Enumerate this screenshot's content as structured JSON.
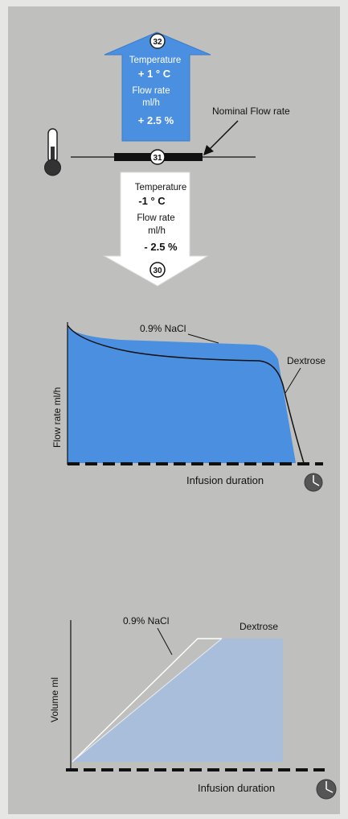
{
  "temperature_diagram": {
    "up": {
      "badge": "32",
      "temperature_label": "Temperature",
      "temperature_value": "+ 1 ° C",
      "flow_label_1": "Flow rate",
      "flow_label_2": "ml/h",
      "flow_value": "+ 2.5 %",
      "color": "#4a8fe0"
    },
    "nominal": {
      "badge": "31",
      "label": "Nominal Flow rate"
    },
    "down": {
      "badge": "30",
      "temperature_label": "Temperature",
      "temperature_value": "-1 ° C",
      "flow_label_1": "Flow rate",
      "flow_label_2": "ml/h",
      "flow_value": "- 2.5 %",
      "color": "#ffffff"
    },
    "thermometer_icon": "thermometer-icon"
  },
  "flow_chart": {
    "ylabel": "Flow rate  ml/h",
    "xlabel": "Infusion duration",
    "series_a": "0.9% NaCl",
    "series_b": "Dextrose",
    "fill_color": "#4a8fe0",
    "clock_icon": "clock-icon"
  },
  "volume_chart": {
    "ylabel": "Volume  ml",
    "xlabel": "Infusion duration",
    "series_a": "0.9% NaCl",
    "series_b": "Dextrose",
    "fill_color": "#a9bedb",
    "clock_icon": "clock-icon"
  }
}
